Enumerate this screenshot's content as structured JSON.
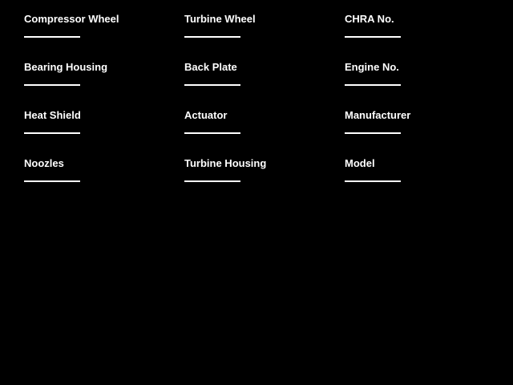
{
  "colors": {
    "background": "#000000",
    "text": "#ffffff",
    "blank_line": "#ffffff"
  },
  "form": {
    "columns": [
      {
        "fields": [
          {
            "label": "Compressor Wheel",
            "value": ""
          },
          {
            "label": "Bearing Housing",
            "value": ""
          },
          {
            "label": "Heat Shield",
            "value": ""
          },
          {
            "label": "Noozles",
            "value": ""
          }
        ]
      },
      {
        "fields": [
          {
            "label": "Turbine Wheel",
            "value": ""
          },
          {
            "label": "Back Plate",
            "value": ""
          },
          {
            "label": "Actuator",
            "value": ""
          },
          {
            "label": "Turbine Housing",
            "value": ""
          }
        ]
      },
      {
        "fields": [
          {
            "label": "CHRA No.",
            "value": ""
          },
          {
            "label": "Engine No.",
            "value": ""
          },
          {
            "label": "Manufacturer",
            "value": ""
          },
          {
            "label": "Model",
            "value": ""
          }
        ]
      }
    ]
  }
}
